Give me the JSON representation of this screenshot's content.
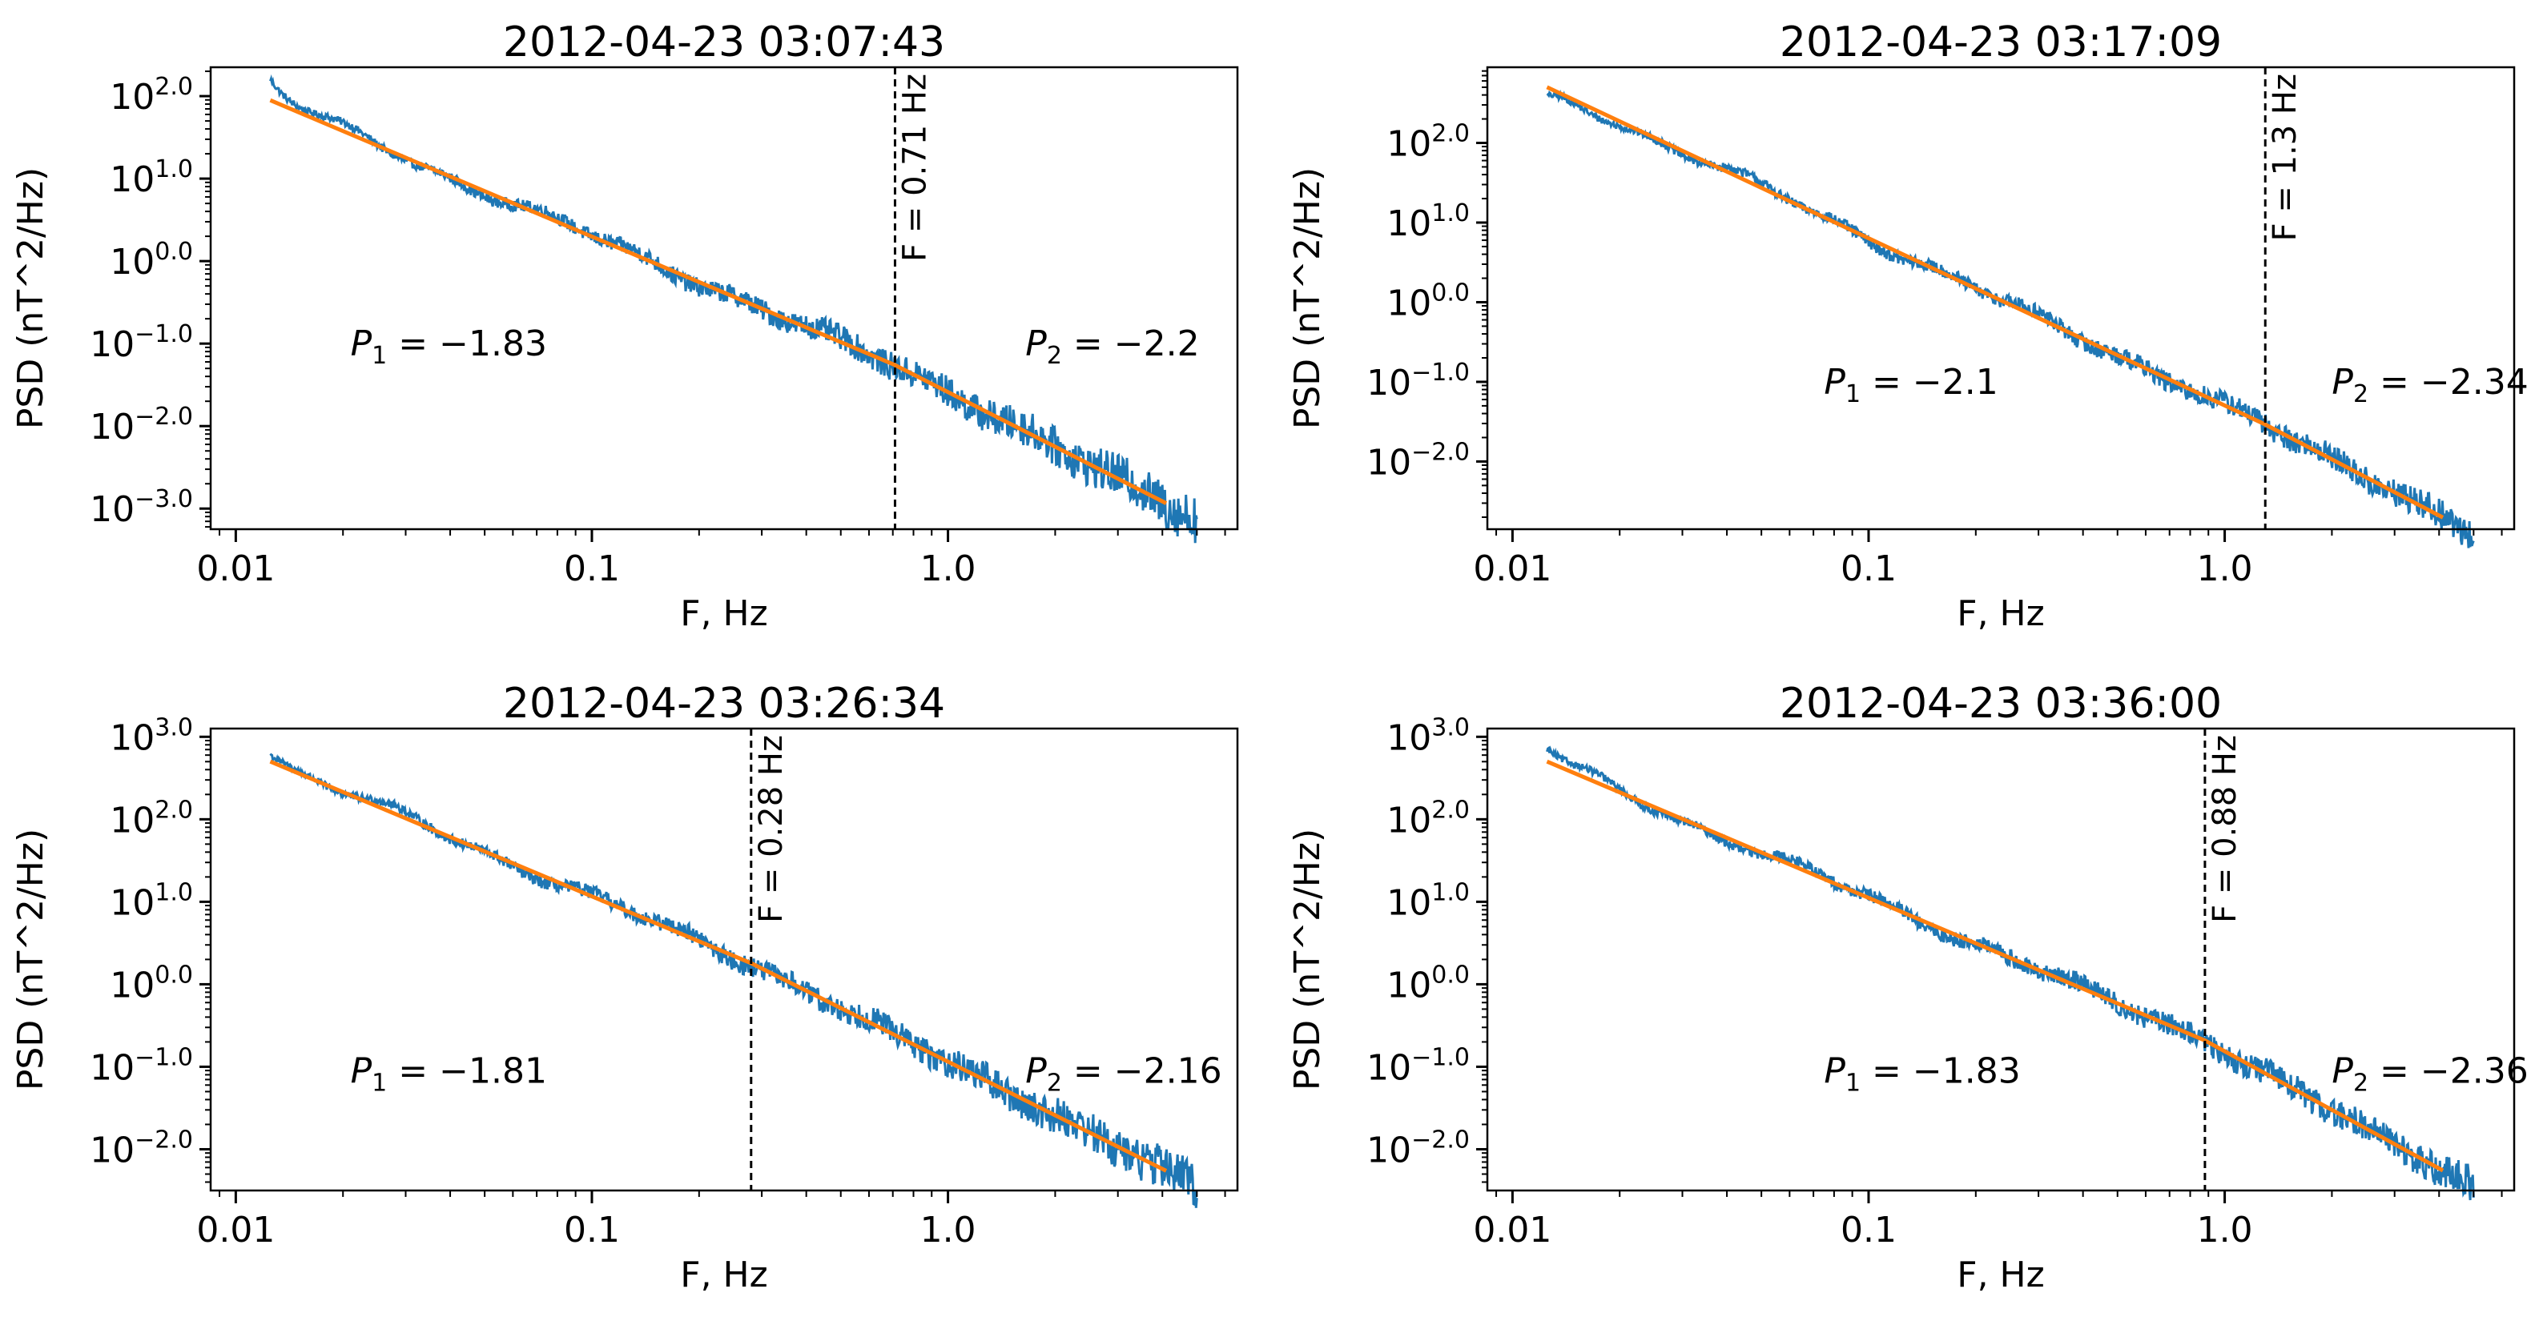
{
  "figure": {
    "background": "#ffffff"
  },
  "colors": {
    "psd": "#1f77b4",
    "fit": "#ff7f0e",
    "axis": "#000000",
    "break_line": "#000000"
  },
  "chart_data": [
    {
      "type": "line",
      "title": "2012-04-23 03:07:43",
      "xlabel": "F, Hz",
      "ylabel": "PSD (nT^2/Hz)",
      "xscale": "log",
      "yscale": "log",
      "xlim": [
        0.0085,
        6.5
      ],
      "ylim_log10": [
        -3.25,
        2.35
      ],
      "xticks": [
        {
          "value": 0.01,
          "label": "0.01"
        },
        {
          "value": 0.1,
          "label": "0.1"
        },
        {
          "value": 1.0,
          "label": "1.0"
        }
      ],
      "yticks": [
        {
          "exp": 2,
          "label_base": "10",
          "label_exp": "2.0"
        },
        {
          "exp": 1,
          "label_base": "10",
          "label_exp": "1.0"
        },
        {
          "exp": 0,
          "label_base": "10",
          "label_exp": "0.0"
        },
        {
          "exp": -1,
          "label_base": "10",
          "label_exp": "−1.0"
        },
        {
          "exp": -2,
          "label_base": "10",
          "label_exp": "−2.0"
        },
        {
          "exp": -3,
          "label_base": "10",
          "label_exp": "−3.0"
        }
      ],
      "f_start": 0.0125,
      "f_end": 5.0,
      "break": {
        "freq": 0.71,
        "label": "F = 0.71 Hz"
      },
      "slopes": {
        "p1": -1.83,
        "p2": -2.2
      },
      "fit_start_log10": 1.95,
      "psd_start_log10": 2.2,
      "noise": {
        "low": 0.1,
        "high": 0.3
      },
      "annotations": [
        {
          "sym": "P",
          "sub": "1",
          "text": " = −1.83",
          "at_freq": 0.021,
          "at_log10": -1.0
        },
        {
          "sym": "P",
          "sub": "2",
          "text": " = −2.2",
          "at_freq": 1.65,
          "at_log10": -1.0
        }
      ]
    },
    {
      "type": "line",
      "title": "2012-04-23 03:17:09",
      "xlabel": "F, Hz",
      "ylabel": "PSD (nT^2/Hz)",
      "xscale": "log",
      "yscale": "log",
      "xlim": [
        0.0085,
        6.5
      ],
      "ylim_log10": [
        -2.85,
        2.95
      ],
      "xticks": [
        {
          "value": 0.01,
          "label": "0.01"
        },
        {
          "value": 0.1,
          "label": "0.1"
        },
        {
          "value": 1.0,
          "label": "1.0"
        }
      ],
      "yticks": [
        {
          "exp": 2,
          "label_base": "10",
          "label_exp": "2.0"
        },
        {
          "exp": 1,
          "label_base": "10",
          "label_exp": "1.0"
        },
        {
          "exp": 0,
          "label_base": "10",
          "label_exp": "0.0"
        },
        {
          "exp": -1,
          "label_base": "10",
          "label_exp": "−1.0"
        },
        {
          "exp": -2,
          "label_base": "10",
          "label_exp": "−2.0"
        }
      ],
      "f_start": 0.0125,
      "f_end": 5.0,
      "break": {
        "freq": 1.3,
        "label": "F = 1.3 Hz"
      },
      "slopes": {
        "p1": -2.1,
        "p2": -2.34
      },
      "fit_start_log10": 2.7,
      "psd_start_log10": 2.5,
      "noise": {
        "low": 0.1,
        "high": 0.2
      },
      "annotations": [
        {
          "sym": "P",
          "sub": "1",
          "text": " = −2.1",
          "at_freq": 0.075,
          "at_log10": -1.0
        },
        {
          "sym": "P",
          "sub": "2",
          "text": " = −2.34",
          "at_freq": 2.0,
          "at_log10": -1.0
        }
      ]
    },
    {
      "type": "line",
      "title": "2012-04-23 03:26:34",
      "xlabel": "F, Hz",
      "ylabel": "PSD (nT^2/Hz)",
      "xscale": "log",
      "yscale": "log",
      "xlim": [
        0.0085,
        6.5
      ],
      "ylim_log10": [
        -2.5,
        3.1
      ],
      "xticks": [
        {
          "value": 0.01,
          "label": "0.01"
        },
        {
          "value": 0.1,
          "label": "0.1"
        },
        {
          "value": 1.0,
          "label": "1.0"
        }
      ],
      "yticks": [
        {
          "exp": 3,
          "label_base": "10",
          "label_exp": "3.0"
        },
        {
          "exp": 2,
          "label_base": "10",
          "label_exp": "2.0"
        },
        {
          "exp": 1,
          "label_base": "10",
          "label_exp": "1.0"
        },
        {
          "exp": 0,
          "label_base": "10",
          "label_exp": "0.0"
        },
        {
          "exp": -1,
          "label_base": "10",
          "label_exp": "−1.0"
        },
        {
          "exp": -2,
          "label_base": "10",
          "label_exp": "−2.0"
        }
      ],
      "f_start": 0.0125,
      "f_end": 5.0,
      "break": {
        "freq": 0.28,
        "label": "F = 0.28 Hz"
      },
      "slopes": {
        "p1": -1.81,
        "p2": -2.16
      },
      "fit_start_log10": 2.7,
      "psd_start_log10": 2.85,
      "noise": {
        "low": 0.1,
        "high": 0.28
      },
      "annotations": [
        {
          "sym": "P",
          "sub": "1",
          "text": " = −1.81",
          "at_freq": 0.021,
          "at_log10": -1.05
        },
        {
          "sym": "P",
          "sub": "2",
          "text": " = −2.16",
          "at_freq": 1.65,
          "at_log10": -1.05
        }
      ]
    },
    {
      "type": "line",
      "title": "2012-04-23 03:36:00",
      "xlabel": "F, Hz",
      "ylabel": "PSD (nT^2/Hz)",
      "xscale": "log",
      "yscale": "log",
      "xlim": [
        0.0085,
        6.5
      ],
      "ylim_log10": [
        -2.5,
        3.1
      ],
      "xticks": [
        {
          "value": 0.01,
          "label": "0.01"
        },
        {
          "value": 0.1,
          "label": "0.1"
        },
        {
          "value": 1.0,
          "label": "1.0"
        }
      ],
      "yticks": [
        {
          "exp": 3,
          "label_base": "10",
          "label_exp": "3.0"
        },
        {
          "exp": 2,
          "label_base": "10",
          "label_exp": "2.0"
        },
        {
          "exp": 1,
          "label_base": "10",
          "label_exp": "1.0"
        },
        {
          "exp": 0,
          "label_base": "10",
          "label_exp": "0.0"
        },
        {
          "exp": -1,
          "label_base": "10",
          "label_exp": "−1.0"
        },
        {
          "exp": -2,
          "label_base": "10",
          "label_exp": "−2.0"
        }
      ],
      "f_start": 0.0125,
      "f_end": 5.0,
      "break": {
        "freq": 0.88,
        "label": "F = 0.88 Hz"
      },
      "slopes": {
        "p1": -1.83,
        "p2": -2.36
      },
      "fit_start_log10": 2.7,
      "psd_start_log10": 2.85,
      "noise": {
        "low": 0.1,
        "high": 0.22
      },
      "annotations": [
        {
          "sym": "P",
          "sub": "1",
          "text": " = −1.83",
          "at_freq": 0.075,
          "at_log10": -1.05
        },
        {
          "sym": "P",
          "sub": "2",
          "text": " = −2.36",
          "at_freq": 2.0,
          "at_log10": -1.05
        }
      ]
    }
  ]
}
